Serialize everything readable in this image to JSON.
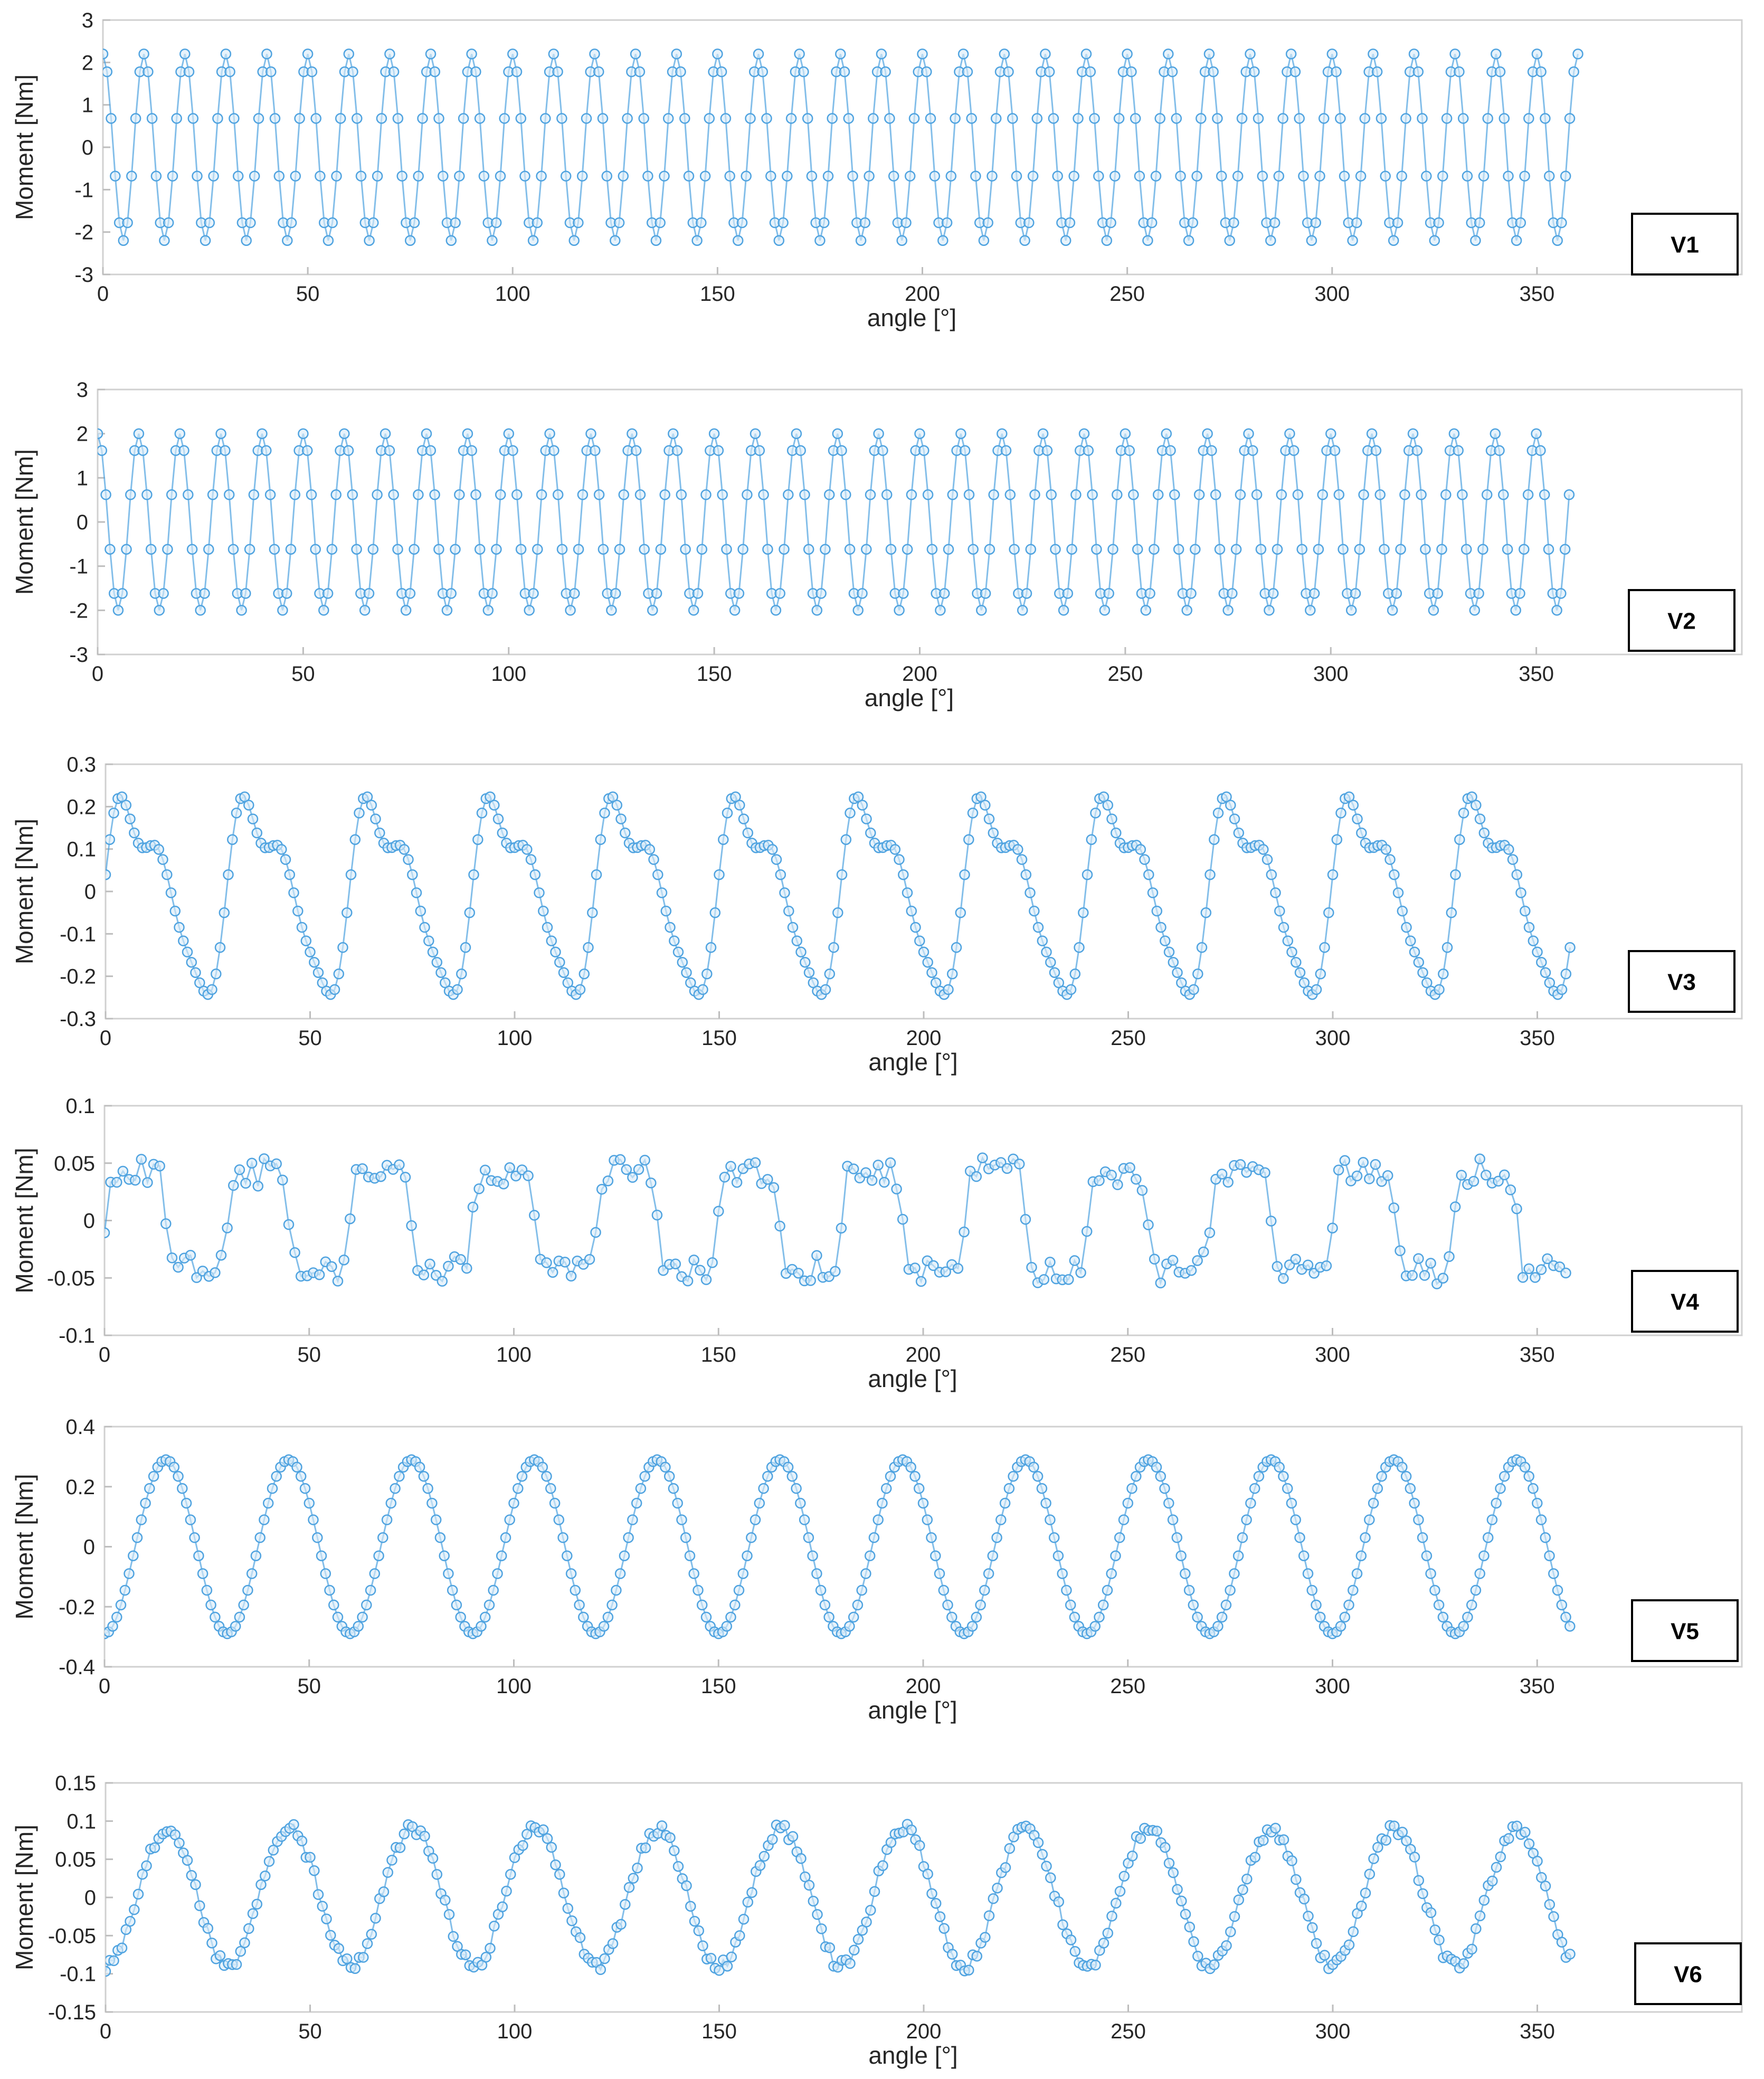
{
  "colors": {
    "series": "#4fa3e0",
    "marker_fill": "#d8ebf8",
    "axes": "#d0d0d0",
    "text": "#262626"
  },
  "chart_data": [
    {
      "type": "line",
      "tag": "V1",
      "xlabel": "angle [°]",
      "ylabel": "Moment [Nm]",
      "xlim": [
        0,
        400
      ],
      "ylim": [
        -3,
        3
      ],
      "xticks": [
        "0",
        "50",
        "100",
        "150",
        "200",
        "250",
        "300",
        "350"
      ],
      "yticks": [
        "3",
        "2",
        "1",
        "0",
        "-1",
        "-2",
        "-3"
      ],
      "series": [
        {
          "shape": "sine",
          "amplitude": 2.2,
          "period": 10,
          "phase": 90,
          "offset": 0,
          "x_start": 0,
          "x_end": 360,
          "step": 1
        }
      ]
    },
    {
      "type": "line",
      "tag": "V2",
      "xlabel": "angle [°]",
      "ylabel": "Moment [Nm]",
      "xlim": [
        0,
        400
      ],
      "ylim": [
        -3,
        3
      ],
      "xticks": [
        "0",
        "50",
        "100",
        "150",
        "200",
        "250",
        "300",
        "350"
      ],
      "yticks": [
        "3",
        "2",
        "1",
        "0",
        "-1",
        "-2",
        "-3"
      ],
      "series": [
        {
          "shape": "sine",
          "amplitude": 2.0,
          "period": 10,
          "phase": 90,
          "offset": 0,
          "x_start": 0,
          "x_end": 358,
          "step": 1
        }
      ]
    },
    {
      "type": "line",
      "tag": "V3",
      "xlabel": "angle [°]",
      "ylabel": "Moment [Nm]",
      "xlim": [
        0,
        400
      ],
      "ylim": [
        -0.3,
        0.3
      ],
      "xticks": [
        "0",
        "50",
        "100",
        "150",
        "200",
        "250",
        "300",
        "350"
      ],
      "yticks": [
        "0.3",
        "0.2",
        "0.1",
        "0",
        "-0.1",
        "-0.2",
        "-0.3"
      ],
      "series": [
        {
          "shape": "harmonic",
          "amplitude": 0.2,
          "period": 30,
          "phase": 0,
          "h2": 0.35,
          "offset": 0,
          "x_start": 0,
          "x_end": 358,
          "step": 1
        }
      ]
    },
    {
      "type": "line",
      "tag": "V4",
      "xlabel": "angle [°]",
      "ylabel": "Moment [Nm]",
      "xlim": [
        0,
        400
      ],
      "ylim": [
        -0.1,
        0.1
      ],
      "xticks": [
        "0",
        "50",
        "100",
        "150",
        "200",
        "250",
        "300",
        "350"
      ],
      "yticks": [
        "0.1",
        "0.05",
        "0",
        "-0.05",
        "-0.1"
      ],
      "series": [
        {
          "shape": "noisy-square",
          "amplitude": 0.045,
          "period": 30,
          "phase": 0,
          "noise": 0.012,
          "offset": 0,
          "x_start": 0,
          "x_end": 358,
          "step": 1.5
        }
      ]
    },
    {
      "type": "line",
      "tag": "V5",
      "xlabel": "angle [°]",
      "ylabel": "Moment [Nm]",
      "xlim": [
        0,
        400
      ],
      "ylim": [
        -0.4,
        0.4
      ],
      "xticks": [
        "0",
        "50",
        "100",
        "150",
        "200",
        "250",
        "300",
        "350"
      ],
      "yticks": [
        "0.4",
        "0.2",
        "0",
        "-0.2",
        "-0.4"
      ],
      "series": [
        {
          "shape": "sine",
          "amplitude": 0.29,
          "period": 30,
          "phase": -90,
          "offset": 0,
          "x_start": 0,
          "x_end": 358,
          "step": 1
        }
      ]
    },
    {
      "type": "line",
      "tag": "V6",
      "xlabel": "angle [°]",
      "ylabel": "Moment [Nm]",
      "xlim": [
        0,
        400
      ],
      "ylim": [
        -0.15,
        0.15
      ],
      "xticks": [
        "0",
        "50",
        "100",
        "150",
        "200",
        "250",
        "300",
        "350"
      ],
      "yticks": [
        "0.15",
        "0.1",
        "0.05",
        "0",
        "-0.05",
        "-0.1",
        "-0.15"
      ],
      "series": [
        {
          "shape": "sine",
          "amplitude": 0.09,
          "period": 30,
          "phase": -90,
          "noise": 0.008,
          "offset": 0,
          "x_start": 0,
          "x_end": 358,
          "step": 1
        }
      ]
    }
  ]
}
